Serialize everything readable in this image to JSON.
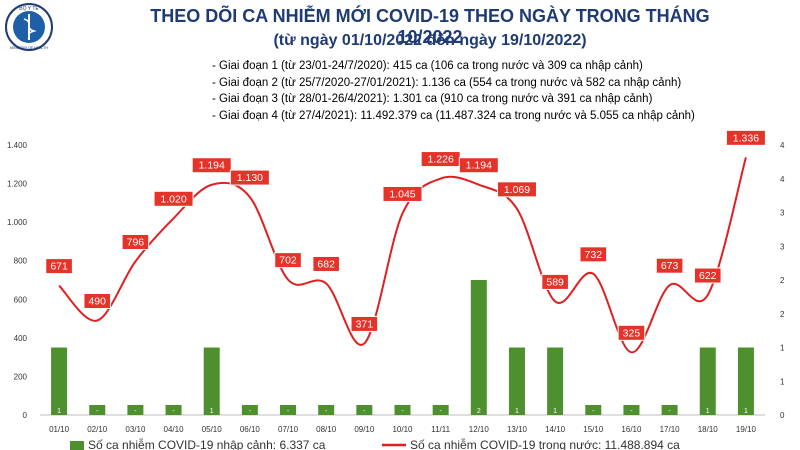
{
  "header": {
    "title": "THEO DÕI CA NHIỄM MỚI COVID-19 THEO NGÀY TRONG THÁNG 10/2022",
    "subtitle": "(từ ngày 01/10/2022 đến ngày 19/10/2022)",
    "logo_top_text": "BỘ Y TẾ",
    "logo_bottom_text": "MINISTRY OF HEALTH"
  },
  "notes": [
    "- Giai đoạn 1 (từ 23/01-24/7/2020): 415 ca (106 ca trong nước và 309 ca nhập cảnh)",
    "- Giai đoạn 2 (từ 25/7/2020-27/01/2021): 1.136 ca (554 ca trong nước và 582 ca nhập cảnh)",
    "- Giai đoạn 3 (từ 28/01-26/4/2021): 1.301 ca (910 ca trong nước và 391 ca nhập cảnh)",
    "- Giai đoạn 4 (từ 27/4/2021): 11.492.379 ca (11.487.324 ca trong nước và 5.055 ca nhập cảnh)"
  ],
  "chart_data": {
    "type": "bar+line",
    "categories": [
      "01/10",
      "02/10",
      "03/10",
      "04/10",
      "05/10",
      "06/10",
      "07/10",
      "08/10",
      "09/10",
      "10/10",
      "11/11",
      "12/10",
      "13/10",
      "14/10",
      "15/10",
      "16/10",
      "17/10",
      "18/10",
      "19/10"
    ],
    "series": [
      {
        "name": "Số ca nhiễm COVID-19 nhập cảnh: 6.337 ca",
        "type": "bar",
        "axis": "right",
        "color": "#4e8f2e",
        "values": [
          1,
          0,
          0,
          0,
          1,
          0,
          0,
          0,
          0,
          0,
          0,
          2,
          1,
          1,
          0,
          0,
          0,
          1,
          1
        ],
        "labels": [
          "1",
          "-",
          "-",
          "-",
          "1",
          "-",
          "-",
          "-",
          "-",
          "-",
          "-",
          "2",
          "1",
          "1",
          "-",
          "-",
          "-",
          "1",
          "1"
        ]
      },
      {
        "name": "Số ca nhiễm COVID-19 trong nước: 11.488.894 ca",
        "type": "line",
        "axis": "left",
        "color": "#e02020",
        "values": [
          671,
          490,
          796,
          1020,
          1194,
          1130,
          702,
          682,
          371,
          1045,
          1226,
          1194,
          1069,
          589,
          732,
          325,
          673,
          622,
          1336
        ],
        "labels": [
          "671",
          "490",
          "796",
          "1.020",
          "1.194",
          "1.130",
          "702",
          "682",
          "371",
          "1.045",
          "1.226",
          "1.194",
          "1.069",
          "589",
          "732",
          "325",
          "673",
          "622",
          "1.336"
        ]
      }
    ],
    "y_left": {
      "min": 0,
      "max": 1400,
      "ticks": [
        0,
        200,
        400,
        600,
        800,
        1000,
        1200,
        1400
      ],
      "tick_labels": [
        "0",
        "200",
        "400",
        "600",
        "800",
        "1.000",
        "1.200",
        "1.400"
      ]
    },
    "y_right": {
      "min": 0,
      "max": 4,
      "ticks": [
        0,
        0.5,
        1,
        1.5,
        2,
        2.5,
        3,
        3.5,
        4
      ],
      "tick_labels": [
        "0",
        "1",
        "1",
        "2",
        "2",
        "3",
        "3",
        "4",
        "4"
      ]
    },
    "grid": false,
    "legend_placement": "bottom"
  }
}
